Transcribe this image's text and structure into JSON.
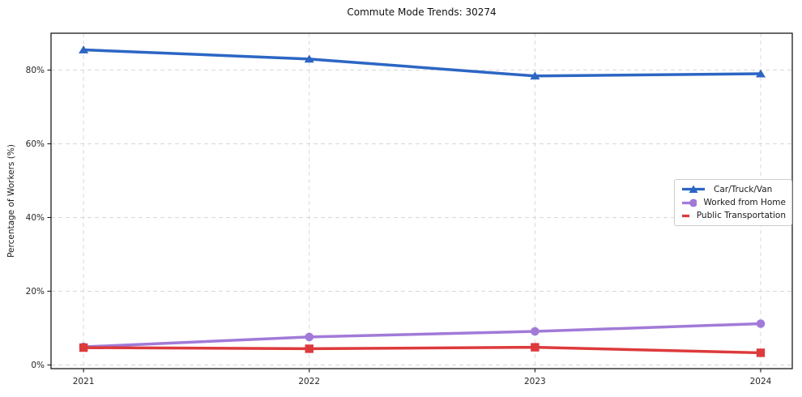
{
  "chart_data": {
    "type": "line",
    "title": "Commute Mode Trends: 30274",
    "xlabel": "",
    "ylabel": "Percentage of Workers (%)",
    "x": [
      2021,
      2022,
      2023,
      2024
    ],
    "x_tick_labels": [
      "2021",
      "2022",
      "2023",
      "2024"
    ],
    "y_ticks": [
      0,
      20,
      40,
      60,
      80
    ],
    "y_tick_labels": [
      "0%",
      "20%",
      "40%",
      "60%",
      "80%"
    ],
    "xlim": [
      2020.856,
      2024.14
    ],
    "ylim": [
      -1,
      90
    ],
    "grid": "dashed-both-axes",
    "legend_position": "center-right-inside",
    "series": [
      {
        "name": "Car/Truck/Van",
        "marker": "triangle",
        "color": "#2c66c4",
        "values": [
          85.5,
          83.0,
          78.4,
          79.0
        ]
      },
      {
        "name": "Worked from Home",
        "marker": "circle",
        "color": "#a17ad8",
        "values": [
          4.9,
          7.6,
          9.1,
          11.2
        ]
      },
      {
        "name": "Public Transportation",
        "marker": "square",
        "color": "#dd3a3c",
        "values": [
          4.7,
          4.4,
          4.8,
          3.3
        ]
      }
    ]
  },
  "style_colors": {
    "grid": "#d8d8d8",
    "spine": "#1a1a1a",
    "tick_label": "#262626",
    "legend_border": "#cccccc"
  }
}
